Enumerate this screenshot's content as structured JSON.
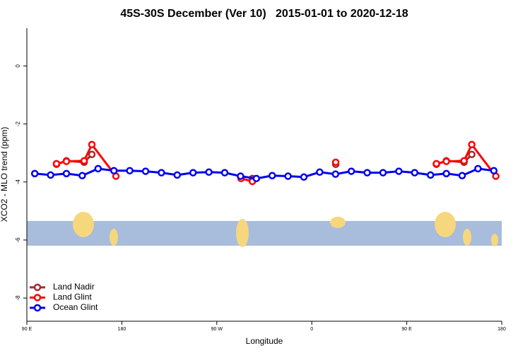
{
  "chart_data": {
    "type": "line",
    "title": "45S-30S December (Ver 10)   2015-01-01 to 2020-12-18",
    "xlabel": "Longitude",
    "ylabel": "XCO2 - MLO trend (ppm)",
    "xlim": [
      90,
      540
    ],
    "xticks": [
      {
        "value": 90,
        "label": "90 E"
      },
      {
        "value": 180,
        "label": "180"
      },
      {
        "value": 270,
        "label": "90 W"
      },
      {
        "value": 360,
        "label": "0"
      },
      {
        "value": 450,
        "label": "90 E"
      },
      {
        "value": 540,
        "label": "180"
      }
    ],
    "ylim": [
      -8.8,
      1.3
    ],
    "yticks": [
      0,
      -2,
      -4,
      -6,
      -8
    ],
    "legend": "bottom-left",
    "series": [
      {
        "name": "Land Nadir",
        "color": "#a52a2a",
        "x": [
          118.1,
          127.5,
          144.3,
          151.6,
          null,
          303.7,
          null,
          382.7,
          null,
          478.1,
          487.5,
          504.3,
          511.6
        ],
        "values": [
          -3.39,
          -3.27,
          -3.32,
          -3.05,
          null,
          -3.88,
          null,
          -3.39,
          null,
          -3.39,
          -3.27,
          -3.32,
          -3.05
        ]
      },
      {
        "name": "Land Glint",
        "color": "#ff0000",
        "x": [
          118.1,
          127.5,
          144.3,
          151.6,
          174.4,
          null,
          293,
          303.7,
          null,
          382.7,
          null,
          478.1,
          487.5,
          504.3,
          511.6,
          534.4
        ],
        "values": [
          -3.37,
          -3.29,
          -3.27,
          -2.71,
          -3.8,
          null,
          -3.88,
          -3.98,
          null,
          -3.32,
          null,
          -3.37,
          -3.29,
          -3.27,
          -2.71,
          -3.8
        ]
      },
      {
        "name": "Ocean Glint",
        "color": "#0000ee",
        "x": [
          97.5,
          112.5,
          127.5,
          142.5,
          157.5,
          172.5,
          187.5,
          202.5,
          217.5,
          232.5,
          247.5,
          262.5,
          277.5,
          292.5,
          307.5,
          322.5,
          337.5,
          352.5,
          367.5,
          382.5,
          397.5,
          412.5,
          427.5,
          442.5,
          457.5,
          472.5,
          487.5,
          502.5,
          517.5,
          532.5
        ],
        "values": [
          -3.71,
          -3.76,
          -3.71,
          -3.78,
          -3.54,
          -3.61,
          -3.61,
          -3.63,
          -3.68,
          -3.76,
          -3.68,
          -3.66,
          -3.68,
          -3.8,
          -3.88,
          -3.78,
          -3.8,
          -3.83,
          -3.66,
          -3.73,
          -3.63,
          -3.68,
          -3.68,
          -3.63,
          -3.68,
          -3.76,
          -3.71,
          -3.78,
          -3.54,
          -3.61
        ]
      }
    ]
  }
}
